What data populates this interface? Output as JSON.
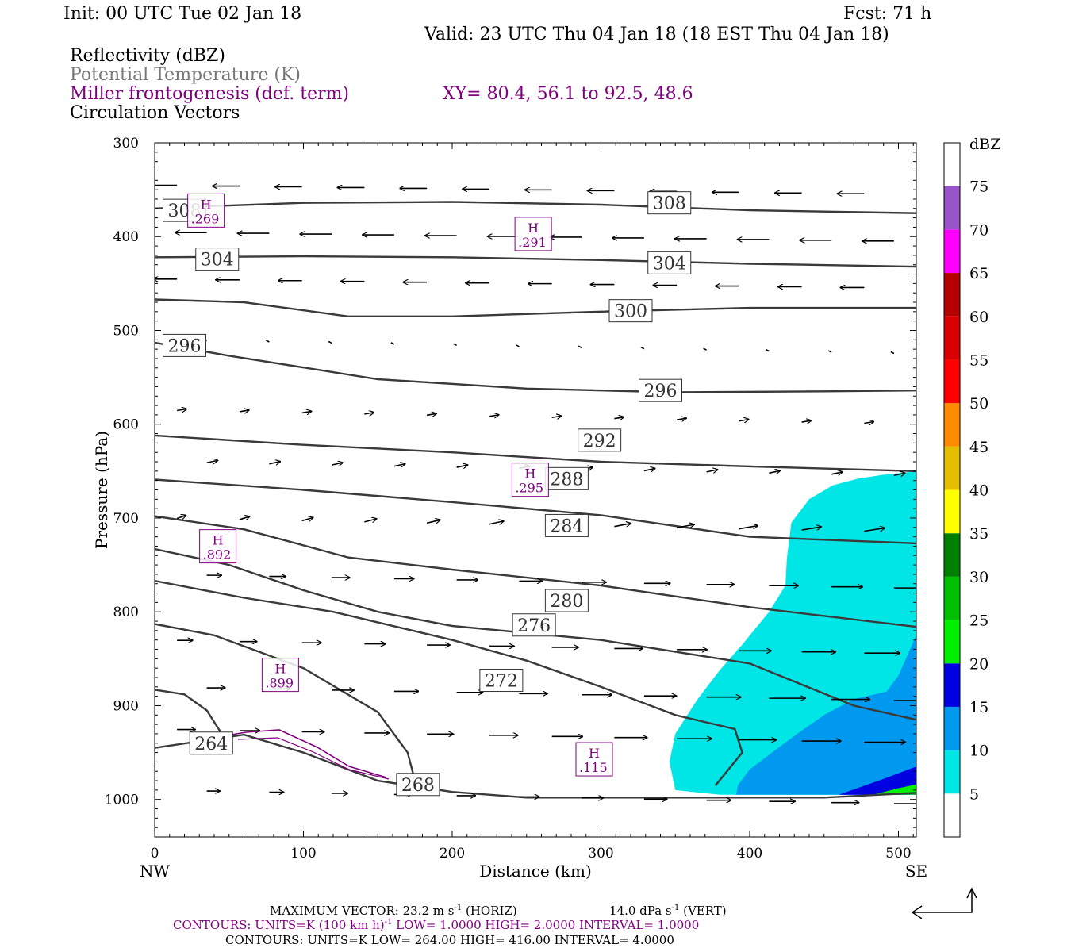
{
  "header": {
    "init": "Init: 00 UTC Tue 02 Jan 18",
    "fcst": "Fcst:   71 h",
    "valid": "Valid: 23 UTC Thu 04 Jan 18 (18 EST Thu 04 Jan 18)",
    "fields": [
      {
        "label": "Reflectivity (dBZ)",
        "color": "#000000"
      },
      {
        "label": "Potential Temperature (K)",
        "color": "#777777"
      },
      {
        "label": "Miller frontogenesis (def. term)",
        "color": "#800080"
      },
      {
        "label": "Circulation Vectors",
        "color": "#000000"
      }
    ],
    "xy": "XY=  80.4, 56.1 to  92.5, 48.6"
  },
  "chart_data": {
    "type": "cross-section",
    "xlabel": "Distance (km)",
    "ylabel": "Pressure (hPa)",
    "xlim": [
      0,
      512
    ],
    "ylim": [
      1040,
      300
    ],
    "x_ticks": [
      0,
      100,
      200,
      300,
      400,
      500
    ],
    "y_ticks": [
      300,
      400,
      500,
      600,
      700,
      800,
      900,
      1000
    ],
    "x_end_labels": {
      "left": "NW",
      "right": "SE"
    },
    "colorbar": {
      "unit": "dBZ",
      "levels": [
        5,
        10,
        15,
        20,
        25,
        30,
        35,
        40,
        45,
        50,
        55,
        60,
        65,
        70,
        75
      ],
      "colors": [
        "#00e5e5",
        "#0099f0",
        "#0000e0",
        "#00f000",
        "#00c000",
        "#008000",
        "#ffff00",
        "#e6be00",
        "#ff8c00",
        "#ff0000",
        "#d80000",
        "#b40000",
        "#ff00ff",
        "#9955c9"
      ]
    },
    "reflectivity": [
      {
        "level": 5,
        "polygon": [
          [
            380,
            995
          ],
          [
            350,
            990
          ],
          [
            346,
            960
          ],
          [
            350,
            930
          ],
          [
            365,
            893
          ],
          [
            380,
            862
          ],
          [
            395,
            835
          ],
          [
            413,
            800
          ],
          [
            424,
            772
          ],
          [
            425,
            743
          ],
          [
            428,
            705
          ],
          [
            440,
            680
          ],
          [
            456,
            665
          ],
          [
            473,
            658
          ],
          [
            489,
            654
          ],
          [
            512,
            650
          ],
          [
            512,
            995
          ]
        ]
      },
      {
        "level": 10,
        "polygon": [
          [
            391,
            995
          ],
          [
            392,
            985
          ],
          [
            400,
            968
          ],
          [
            415,
            950
          ],
          [
            432,
            930
          ],
          [
            450,
            910
          ],
          [
            470,
            893
          ],
          [
            492,
            885
          ],
          [
            500,
            868
          ],
          [
            512,
            825
          ],
          [
            512,
            995
          ]
        ]
      },
      {
        "level": 15,
        "polygon": [
          [
            460,
            995
          ],
          [
            490,
            978
          ],
          [
            512,
            965
          ],
          [
            512,
            995
          ]
        ]
      },
      {
        "level": 20,
        "polygon": [
          [
            483,
            995
          ],
          [
            500,
            988
          ],
          [
            512,
            984
          ],
          [
            512,
            995
          ]
        ]
      }
    ],
    "theta_contours": [
      {
        "value": 308,
        "label_positions": [
          [
            20,
            372
          ],
          [
            346,
            364
          ]
        ],
        "points": [
          [
            0,
            370
          ],
          [
            30,
            368
          ],
          [
            100,
            364
          ],
          [
            200,
            363
          ],
          [
            300,
            366
          ],
          [
            400,
            372
          ],
          [
            512,
            375
          ]
        ]
      },
      {
        "value": 304,
        "label_positions": [
          [
            42,
            424
          ],
          [
            346,
            428
          ]
        ],
        "points": [
          [
            0,
            422
          ],
          [
            100,
            421
          ],
          [
            200,
            422
          ],
          [
            300,
            425
          ],
          [
            400,
            429
          ],
          [
            512,
            432
          ]
        ]
      },
      {
        "value": 300,
        "label_positions": [
          [
            320,
            479
          ]
        ],
        "points": [
          [
            0,
            467
          ],
          [
            60,
            470
          ],
          [
            130,
            485
          ],
          [
            200,
            485
          ],
          [
            300,
            480
          ],
          [
            400,
            476
          ],
          [
            512,
            476
          ]
        ]
      },
      {
        "value": 296,
        "label_positions": [
          [
            20,
            516
          ],
          [
            340,
            564
          ]
        ],
        "points": [
          [
            0,
            513
          ],
          [
            50,
            527
          ],
          [
            150,
            552
          ],
          [
            250,
            562
          ],
          [
            350,
            566
          ],
          [
            450,
            565
          ],
          [
            512,
            564
          ]
        ]
      },
      {
        "value": 292,
        "label_positions": [
          [
            299,
            617
          ]
        ],
        "points": [
          [
            0,
            612
          ],
          [
            100,
            622
          ],
          [
            200,
            630
          ],
          [
            300,
            640
          ],
          [
            400,
            645
          ],
          [
            512,
            650
          ]
        ]
      },
      {
        "value": 288,
        "label_positions": [
          [
            277,
            658
          ]
        ],
        "points": [
          [
            0,
            659
          ],
          [
            100,
            670
          ],
          [
            200,
            683
          ],
          [
            300,
            697
          ],
          [
            400,
            720
          ],
          [
            512,
            727
          ]
        ]
      },
      {
        "value": 284,
        "label_positions": [
          [
            277,
            708
          ]
        ],
        "points": [
          [
            0,
            698
          ],
          [
            60,
            712
          ],
          [
            130,
            742
          ],
          [
            200,
            755
          ],
          [
            300,
            772
          ],
          [
            400,
            795
          ],
          [
            512,
            816
          ]
        ]
      },
      {
        "value": 280,
        "label_positions": [
          [
            277,
            788
          ]
        ],
        "points": [
          [
            0,
            733
          ],
          [
            50,
            750
          ],
          [
            100,
            777
          ],
          [
            150,
            800
          ],
          [
            200,
            815
          ],
          [
            300,
            830
          ],
          [
            400,
            855
          ],
          [
            470,
            900
          ],
          [
            512,
            915
          ]
        ]
      },
      {
        "value": 276,
        "label_positions": [
          [
            255,
            814
          ]
        ],
        "points": [
          [
            0,
            767
          ],
          [
            60,
            785
          ],
          [
            120,
            800
          ],
          [
            200,
            830
          ],
          [
            250,
            852
          ],
          [
            300,
            880
          ],
          [
            350,
            910
          ],
          [
            390,
            925
          ],
          [
            395,
            950
          ],
          [
            377,
            985
          ]
        ]
      },
      {
        "value": 272,
        "label_positions": [
          [
            233,
            873
          ]
        ],
        "points": [
          [
            0,
            813
          ],
          [
            40,
            825
          ],
          [
            100,
            860
          ],
          [
            150,
            907
          ],
          [
            170,
            950
          ],
          [
            175,
            980
          ]
        ]
      },
      {
        "value": 268,
        "label_positions": [
          [
            177,
            984
          ]
        ],
        "points": [
          [
            0,
            945
          ],
          [
            60,
            931
          ],
          [
            100,
            950
          ],
          [
            150,
            980
          ],
          [
            200,
            992
          ],
          [
            250,
            998
          ],
          [
            350,
            998
          ],
          [
            450,
            998
          ],
          [
            512,
            993
          ]
        ]
      },
      {
        "value": 264,
        "label_positions": [
          [
            38,
            940
          ]
        ],
        "points": [
          [
            0,
            883
          ],
          [
            20,
            888
          ],
          [
            35,
            905
          ],
          [
            45,
            930
          ]
        ]
      }
    ],
    "frontogenesis_highs": [
      {
        "label": "H",
        "value": ".269",
        "x": 35,
        "y": 373
      },
      {
        "label": "H",
        "value": ".291",
        "x": 255,
        "y": 398
      },
      {
        "label": "H",
        "value": ".295",
        "x": 253,
        "y": 660
      },
      {
        "label": "H",
        "value": ".892",
        "x": 43,
        "y": 731
      },
      {
        "label": "H",
        "value": ".899",
        "x": 85,
        "y": 868
      },
      {
        "label": "H",
        "value": ".115",
        "x": 296,
        "y": 958
      }
    ],
    "footer": {
      "max_vector_label": "MAXIMUM VECTOR:  23.2 m s",
      "max_vector_horiz": " (HORIZ)",
      "max_vector_vert": "14.0 dPa s",
      "max_vector_vert_suffix": " (VERT)",
      "exp": "-1",
      "contours_purple": "CONTOURS:  UNITS=K (100 km h)",
      "contours_purple_2": "  LOW=   1.0000        HIGH=   2.0000        INTERVAL=    1.0000",
      "contours_black": "CONTOURS:  UNITS=K  LOW=  264.00       HIGH=  416.00        INTERVAL=    4.0000"
    }
  }
}
